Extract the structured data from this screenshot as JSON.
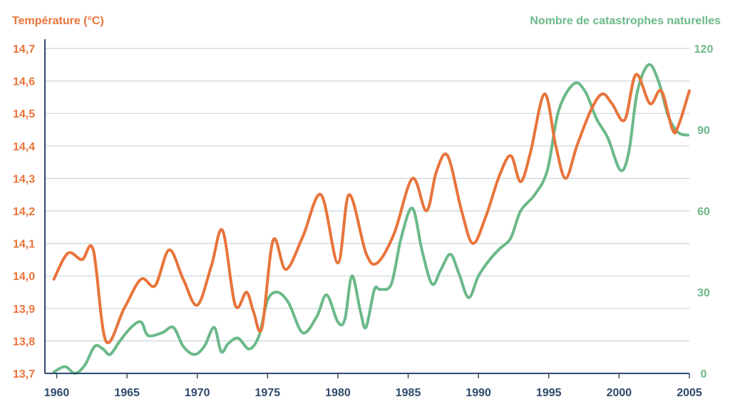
{
  "colors": {
    "temperature": "#E8743B",
    "disasters": "#6CB98A",
    "axis": "#2E4A6B",
    "grid": "#C9D6DC",
    "background": "#FFFFFF"
  },
  "chart_data": {
    "type": "line",
    "left_axis_title": "Température (°C)",
    "right_axis_title": "Nombre de catastrophes naturelles",
    "x_ticks": [
      "1960",
      "1965",
      "1970",
      "1975",
      "1980",
      "1985",
      "1990",
      "1995",
      "2000",
      "2005"
    ],
    "x_range": [
      1959.3,
      2005
    ],
    "left_ticks": [
      "13,7",
      "13,8",
      "13,9",
      "14,0",
      "14,1",
      "14,2",
      "14,3",
      "14,4",
      "14,5",
      "14,6",
      "14,7"
    ],
    "left_range": [
      13.7,
      14.7
    ],
    "right_ticks": [
      "0",
      "30",
      "60",
      "90",
      "120"
    ],
    "right_range": [
      0,
      120
    ],
    "grid": true,
    "series": [
      {
        "key": "temperature",
        "axis": "left",
        "x": [
          1959.8,
          1960.8,
          1961.8,
          1962.6,
          1963.5,
          1964.8,
          1966.0,
          1967.0,
          1968.0,
          1969.0,
          1970.0,
          1971.0,
          1971.8,
          1972.7,
          1973.5,
          1974.0,
          1974.6,
          1975.4,
          1976.3,
          1977.5,
          1978.8,
          1980.0,
          1980.8,
          1982.0,
          1982.8,
          1984.0,
          1985.3,
          1986.3,
          1987.0,
          1987.8,
          1988.8,
          1989.6,
          1990.5,
          1991.5,
          1992.3,
          1993.0,
          1993.7,
          1994.7,
          1995.5,
          1996.2,
          1997.0,
          1998.0,
          1998.8,
          1999.5,
          2000.4,
          2001.2,
          2002.2,
          2003.0,
          2003.8,
          2004.2,
          2005.0
        ],
        "values": [
          13.99,
          14.07,
          14.05,
          14.08,
          13.8,
          13.9,
          13.99,
          13.97,
          14.08,
          13.99,
          13.91,
          14.03,
          14.14,
          13.91,
          13.95,
          13.89,
          13.84,
          14.11,
          14.02,
          14.12,
          14.25,
          14.04,
          14.25,
          14.07,
          14.04,
          14.13,
          14.3,
          14.2,
          14.32,
          14.37,
          14.2,
          14.1,
          14.18,
          14.31,
          14.37,
          14.29,
          14.38,
          14.56,
          14.4,
          14.3,
          14.4,
          14.51,
          14.56,
          14.53,
          14.48,
          14.62,
          14.53,
          14.57,
          14.45,
          14.46,
          14.57
        ]
      },
      {
        "key": "disasters",
        "axis": "right",
        "x": [
          1959.8,
          1960.6,
          1961.3,
          1962.0,
          1962.7,
          1963.3,
          1963.8,
          1964.5,
          1965.3,
          1966.0,
          1966.5,
          1967.5,
          1968.3,
          1969.0,
          1969.8,
          1970.5,
          1971.2,
          1971.7,
          1972.2,
          1972.9,
          1973.7,
          1974.4,
          1975.0,
          1975.7,
          1976.5,
          1977.5,
          1978.5,
          1979.2,
          1980.0,
          1980.5,
          1981.0,
          1981.6,
          1982.0,
          1982.6,
          1983.0,
          1983.8,
          1984.5,
          1985.3,
          1986.0,
          1986.7,
          1987.3,
          1988.0,
          1988.6,
          1989.3,
          1990.0,
          1990.8,
          1991.5,
          1992.3,
          1993.0,
          1994.0,
          1994.9,
          1995.7,
          1996.8,
          1997.6,
          1998.4,
          1999.2,
          2000.1,
          2000.7,
          2001.3,
          2002.1,
          2002.8,
          2003.5,
          2004.2,
          2004.9
        ],
        "values": [
          0.5,
          2.5,
          0,
          3,
          10,
          9,
          7,
          12,
          17,
          19,
          14,
          15,
          17,
          10,
          7,
          10,
          17,
          8,
          11,
          13,
          9,
          14,
          27,
          30,
          26,
          15,
          21,
          29,
          19,
          20,
          36,
          23,
          17,
          31,
          31,
          33,
          50,
          61,
          45,
          33,
          38,
          44,
          37,
          28,
          36,
          42,
          46,
          50,
          60,
          66,
          75,
          97,
          107,
          104,
          94,
          87,
          75,
          82,
          104,
          114,
          108,
          95,
          89,
          88
        ]
      }
    ]
  }
}
